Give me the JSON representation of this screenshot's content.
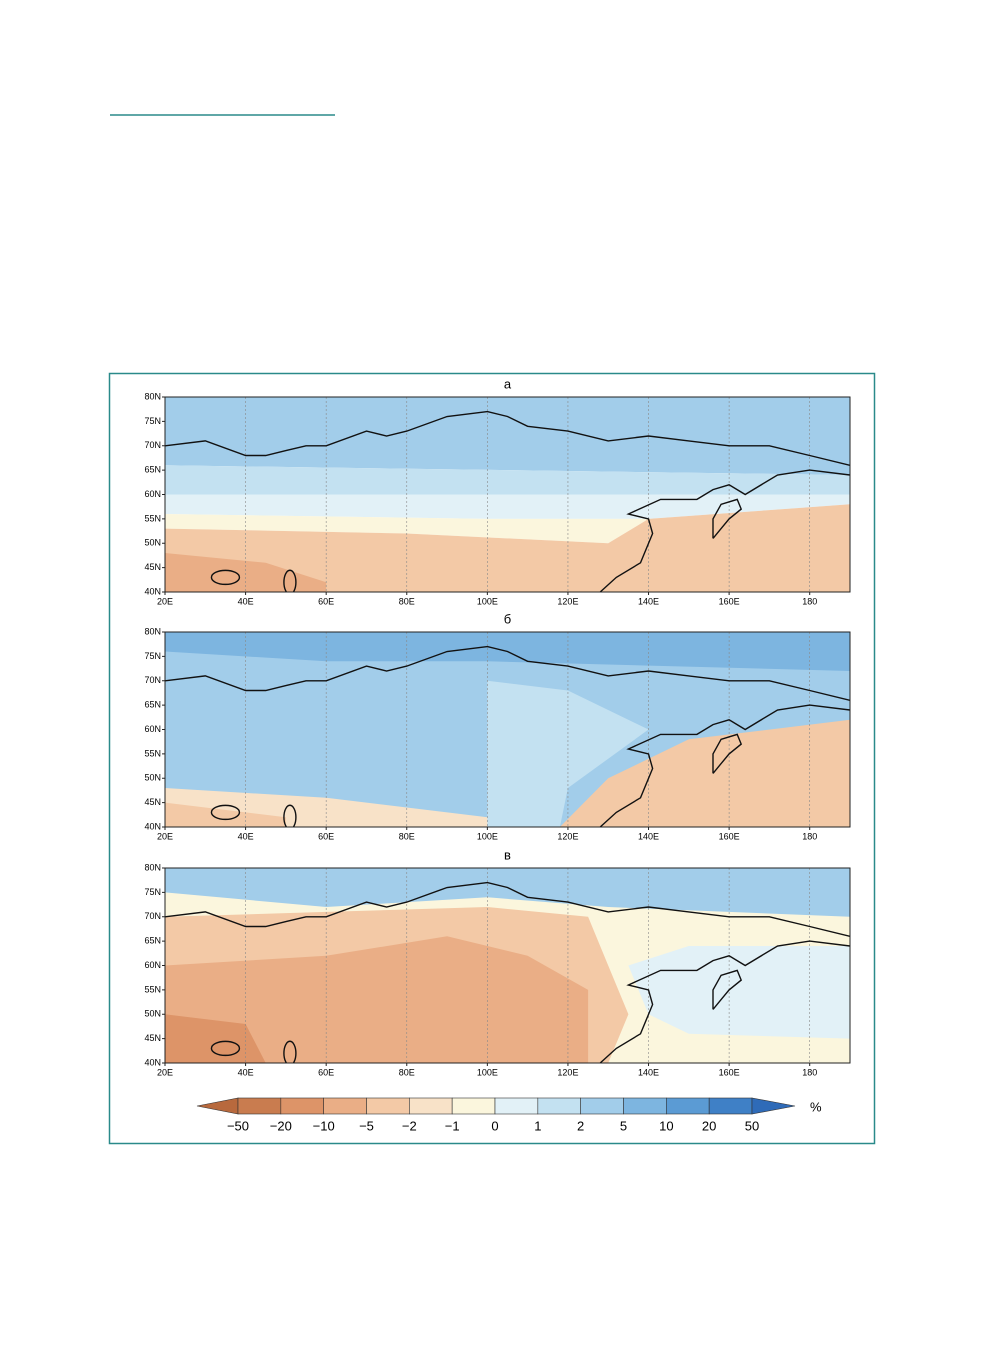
{
  "figure": {
    "panels": [
      {
        "label": "а"
      },
      {
        "label": "б"
      },
      {
        "label": "в"
      }
    ],
    "lat_ticks": [
      "80N",
      "75N",
      "70N",
      "65N",
      "60N",
      "55N",
      "50N",
      "45N",
      "40N"
    ],
    "lon_ticks": [
      "20E",
      "40E",
      "60E",
      "80E",
      "100E",
      "120E",
      "140E",
      "160E",
      "180"
    ],
    "colorbar": {
      "labels": [
        "−50",
        "−20",
        "−10",
        "−5",
        "−2",
        "−1",
        "0",
        "1",
        "2",
        "5",
        "10",
        "20",
        "50"
      ],
      "unit": "%"
    }
  }
}
